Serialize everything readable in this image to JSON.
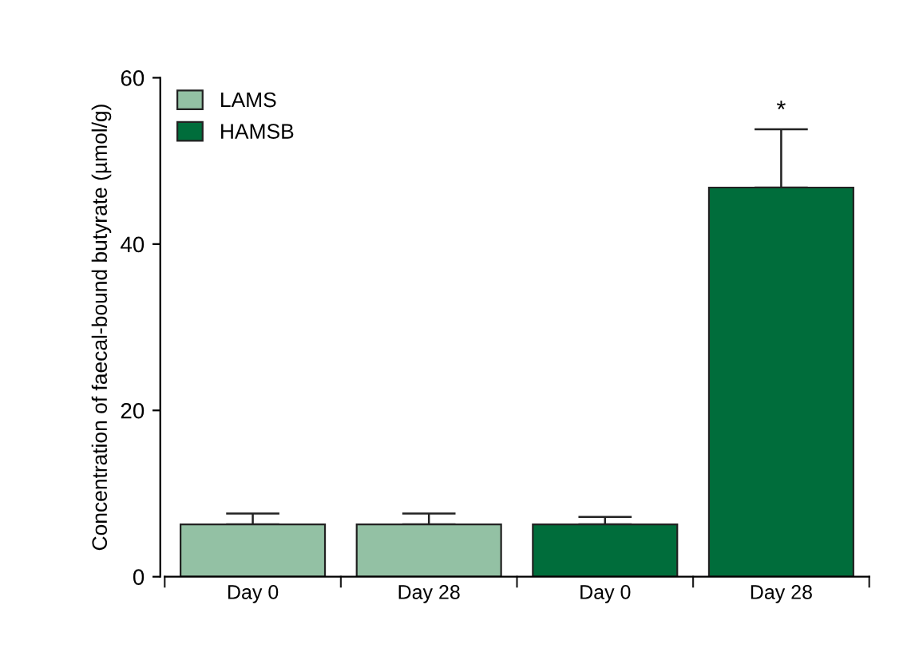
{
  "chart_data": {
    "type": "bar",
    "ylabel": "Concentration of faecal-bound butyrate (µmol/g)",
    "categories": [
      "Day 0",
      "Day 28",
      "Day 0",
      "Day 28"
    ],
    "series": [
      {
        "name": "LAMS",
        "color": "#93c1a4",
        "values": [
          6.3,
          6.3,
          null,
          null
        ],
        "errors": [
          1.3,
          1.3,
          null,
          null
        ]
      },
      {
        "name": "HAMSB",
        "color": "#006d3b",
        "values": [
          null,
          null,
          6.3,
          46.8
        ],
        "errors": [
          null,
          null,
          0.9,
          7.0
        ]
      }
    ],
    "ylim": [
      0,
      60
    ],
    "yticks": [
      0,
      20,
      40,
      60
    ],
    "grid": false,
    "legend": "top left",
    "annotations": [
      "*"
    ]
  }
}
